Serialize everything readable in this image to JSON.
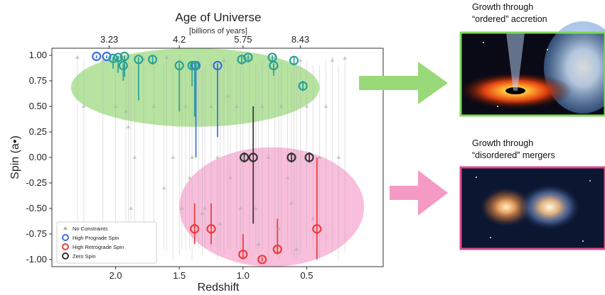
{
  "chart_data": {
    "type": "scatter",
    "title": "Age of Universe",
    "subtitle": "[billions of years]",
    "xlabel": "Redshift",
    "ylabel": "Spin (a•)",
    "xlim": [
      2.5,
      -0.1
    ],
    "ylim": [
      -1.07,
      1.07
    ],
    "x_ticks": [
      "2.0",
      "1.5",
      "1.0",
      "0.5"
    ],
    "x_tick_values": [
      2.0,
      1.5,
      1.0,
      0.5
    ],
    "y_ticks": [
      "1.00",
      "0.75",
      "0.50",
      "0.25",
      "0.00",
      "-0.25",
      "-0.50",
      "-0.75",
      "-1.00"
    ],
    "y_tick_values": [
      1.0,
      0.75,
      0.5,
      0.25,
      0.0,
      -0.25,
      -0.5,
      -0.75,
      -1.0
    ],
    "top_axis_ticks": [
      "3.23",
      "4.2",
      "5.75",
      "8.43"
    ],
    "top_axis_tick_redshifts": [
      2.05,
      1.5,
      1.0,
      0.55
    ],
    "grid": false,
    "legend_position": "bottom-left",
    "series": [
      {
        "name": "No Constraints",
        "color": "#aaaaaa",
        "marker": "triangle",
        "x": [
          2.3,
          2.25,
          2.1,
          2.0,
          1.9,
          1.85,
          1.78,
          1.7,
          1.6,
          1.55,
          1.5,
          1.45,
          1.4,
          1.35,
          1.3,
          1.25,
          1.2,
          1.15,
          1.1,
          1.05,
          1.0,
          0.95,
          0.9,
          0.85,
          0.8,
          0.75,
          0.7,
          0.65,
          0.6,
          0.55,
          0.5,
          0.45,
          0.4,
          0.35,
          0.3,
          0.25,
          0.2,
          1.88,
          1.62,
          1.48,
          1.32,
          1.18,
          1.02,
          0.88,
          0.72,
          0.58,
          1.92,
          1.42,
          1.12,
          0.62
        ],
        "y": [
          0.98,
          0.5,
          0.95,
          0.5,
          0.3,
          0.0,
          0.96,
          0.5,
          0.98,
          0.0,
          0.95,
          0.5,
          0.0,
          0.9,
          -0.5,
          0.5,
          0.0,
          0.95,
          -0.2,
          0.5,
          0.0,
          0.97,
          -0.5,
          0.5,
          0.0,
          0.98,
          0.5,
          -0.2,
          0.0,
          0.95,
          0.5,
          -0.6,
          0.0,
          0.5,
          0.95,
          0.0,
          0.97,
          -0.5,
          -0.3,
          -0.5,
          -0.55,
          -0.65,
          -0.5,
          -0.85,
          -0.7,
          -0.9,
          0.45,
          -0.2,
          0.6,
          -0.45
        ],
        "yerr_low": [
          1.9,
          1.4,
          1.9,
          1.3,
          1.2,
          1.0,
          1.9,
          1.4,
          1.9,
          1.0,
          1.9,
          1.4,
          1.0,
          1.8,
          0.4,
          1.4,
          1.0,
          1.9,
          0.7,
          1.4,
          1.0,
          1.9,
          0.4,
          1.4,
          1.0,
          1.9,
          1.4,
          0.7,
          1.0,
          1.9,
          1.4,
          0.3,
          1.0,
          1.4,
          1.9,
          1.0,
          1.9,
          0.4,
          0.6,
          0.4,
          0.4,
          0.3,
          0.4,
          0.1,
          0.3,
          0.1,
          1.4,
          0.7,
          1.5,
          0.5
        ],
        "yerr_high": [
          0.02,
          0.45,
          0.05,
          0.45,
          0.65,
          0.9,
          0.04,
          0.45,
          0.02,
          0.9,
          0.05,
          0.45,
          0.9,
          0.1,
          1.4,
          0.45,
          0.9,
          0.05,
          1.1,
          0.45,
          0.9,
          0.03,
          1.4,
          0.45,
          0.9,
          0.02,
          0.45,
          1.1,
          0.9,
          0.05,
          0.45,
          1.5,
          0.9,
          0.45,
          0.05,
          0.9,
          0.03,
          1.4,
          1.2,
          1.4,
          1.4,
          1.5,
          1.4,
          1.7,
          1.6,
          1.8,
          0.5,
          1.1,
          0.35,
          1.3
        ]
      },
      {
        "name": "High Prograde Spin",
        "color": "#3a6fe0",
        "marker": "circle",
        "x": [
          2.15,
          2.07,
          1.37,
          1.2
        ],
        "y": [
          0.99,
          0.99,
          0.9,
          0.9
        ],
        "yerr_low": [
          0.02,
          0.02,
          0.9,
          0.7
        ],
        "yerr_high": [
          0.01,
          0.01,
          0.02,
          0.02
        ]
      },
      {
        "name": "",
        "color": "#2aa198",
        "marker": "circle",
        "x": [
          2.02,
          1.98,
          1.93,
          1.94,
          1.82,
          1.71,
          1.5,
          1.4,
          1.38,
          1.01,
          0.96,
          0.77,
          0.76,
          0.6,
          0.53
        ],
        "y": [
          0.97,
          0.98,
          0.99,
          0.9,
          0.96,
          0.96,
          0.9,
          0.9,
          0.9,
          0.96,
          0.98,
          0.98,
          0.9,
          0.95,
          0.7
        ],
        "yerr_low": [
          0.1,
          0.15,
          0.2,
          0.15,
          0.4,
          0.05,
          0.45,
          0.2,
          0.5,
          0.05,
          0.05,
          0.05,
          0.1,
          0.05,
          0.05
        ],
        "yerr_high": [
          0.02,
          0.02,
          0.01,
          0.02,
          0.02,
          0.03,
          0.02,
          0.02,
          0.02,
          0.03,
          0.02,
          0.02,
          0.02,
          0.03,
          0.05
        ]
      },
      {
        "name": "High Retrograde Spin",
        "color": "#ee3a3a",
        "marker": "circle",
        "x": [
          1.38,
          1.25,
          1.0,
          0.85,
          0.73,
          0.42
        ],
        "y": [
          -0.7,
          -0.7,
          -0.95,
          -1.0,
          -0.9,
          -0.7
        ],
        "yerr_low": [
          0.15,
          0.15,
          0.05,
          0.02,
          0.05,
          0.3
        ],
        "yerr_high": [
          0.25,
          0.25,
          0.2,
          0.02,
          0.3,
          0.7
        ]
      },
      {
        "name": "Zero Spin",
        "color": "#333333",
        "marker": "circle",
        "x": [
          0.99,
          0.92,
          0.62,
          0.48
        ],
        "y": [
          0.0,
          0.0,
          0.0,
          0.0
        ],
        "yerr_low": [
          0.05,
          0.65,
          0.05,
          0.05
        ],
        "yerr_high": [
          0.05,
          0.5,
          0.05,
          0.05
        ]
      }
    ],
    "regions": [
      {
        "color": "#9ed980",
        "x_range": [
          2.35,
          0.4
        ],
        "y_range": [
          0.3,
          1.07
        ]
      },
      {
        "color": "#f5a8cf",
        "x_range": [
          1.5,
          0.05
        ],
        "y_range": [
          -1.07,
          0.1
        ]
      }
    ],
    "legend": [
      "No Constraints",
      "High Prograde Spin",
      "High Retrograde Spin",
      "Zero Spin"
    ]
  },
  "panels": {
    "accretion": {
      "title": "Growth through “ordered” accretion",
      "border_color": "#7ed957",
      "arrow_color": "#9ad97a"
    },
    "mergers": {
      "title": "Growth through “disordered” mergers",
      "border_color": "#e0488f",
      "arrow_color": "#f59ac4"
    }
  }
}
